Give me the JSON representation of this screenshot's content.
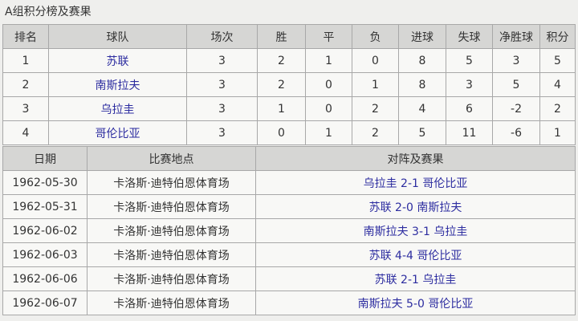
{
  "title": "A组积分榜及赛果",
  "standings": {
    "headers": [
      "排名",
      "球队",
      "场次",
      "胜",
      "平",
      "负",
      "进球",
      "失球",
      "净胜球",
      "积分"
    ],
    "rows": [
      [
        "1",
        "苏联",
        "3",
        "2",
        "1",
        "0",
        "8",
        "5",
        "3",
        "5"
      ],
      [
        "2",
        "南斯拉夫",
        "3",
        "2",
        "0",
        "1",
        "8",
        "3",
        "5",
        "4"
      ],
      [
        "3",
        "乌拉圭",
        "3",
        "1",
        "0",
        "2",
        "4",
        "6",
        "-2",
        "2"
      ],
      [
        "4",
        "哥伦比亚",
        "3",
        "0",
        "1",
        "2",
        "5",
        "11",
        "-6",
        "1"
      ]
    ]
  },
  "matches": {
    "headers": [
      "日期",
      "比赛地点",
      "对阵及赛果"
    ],
    "rows": [
      [
        "1962-05-30",
        "卡洛斯·迪特伯恩体育场",
        "乌拉圭 2-1 哥伦比亚"
      ],
      [
        "1962-05-31",
        "卡洛斯·迪特伯恩体育场",
        "苏联 2-0 南斯拉夫"
      ],
      [
        "1962-06-02",
        "卡洛斯·迪特伯恩体育场",
        "南斯拉夫 3-1 乌拉圭"
      ],
      [
        "1962-06-03",
        "卡洛斯·迪特伯恩体育场",
        "苏联 4-4 哥伦比亚"
      ],
      [
        "1962-06-06",
        "卡洛斯·迪特伯恩体育场",
        "苏联 2-1 乌拉圭"
      ],
      [
        "1962-06-07",
        "卡洛斯·迪特伯恩体育场",
        "南斯拉夫 5-0 哥伦比亚"
      ]
    ]
  }
}
